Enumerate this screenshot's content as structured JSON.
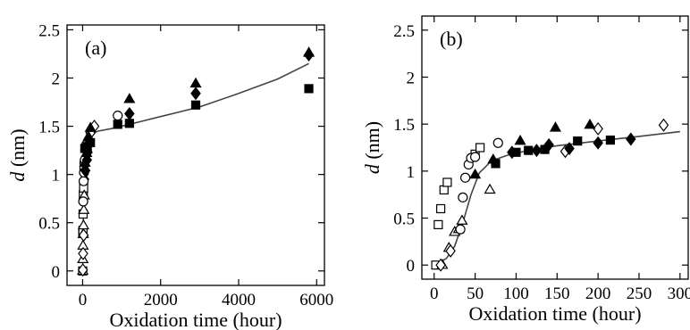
{
  "chart_data": [
    {
      "type": "scatter",
      "panel_label": "(a)",
      "xlabel": "Oxidation time (hour)",
      "ylabel_italic": "d",
      "ylabel_unit": " (nm)",
      "xlim": [
        -400,
        6200
      ],
      "ylim": [
        -0.15,
        2.55
      ],
      "xticks": [
        0,
        2000,
        4000,
        6000
      ],
      "xtick_labels": [
        "0",
        "2000",
        "4000",
        "6000"
      ],
      "yticks": [
        0,
        0.5,
        1,
        1.5,
        2,
        2.5
      ],
      "ytick_labels": [
        "0",
        "0.5",
        "1",
        "1.5",
        "2",
        "2.5"
      ],
      "grid": false,
      "series": [
        {
          "marker": "square-open",
          "points": [
            [
              2,
              0.0
            ],
            [
              5,
              0.39
            ],
            [
              8,
              0.42
            ],
            [
              12,
              0.59
            ],
            [
              18,
              0.79
            ],
            [
              25,
              0.86
            ],
            [
              35,
              1.05
            ],
            [
              55,
              1.27
            ]
          ]
        },
        {
          "marker": "triangle-open",
          "points": [
            [
              3,
              0.0
            ],
            [
              6,
              0.12
            ],
            [
              10,
              0.26
            ],
            [
              15,
              0.38
            ],
            [
              22,
              0.47
            ],
            [
              30,
              0.63
            ],
            [
              40,
              0.78
            ]
          ]
        },
        {
          "marker": "diamond-open",
          "points": [
            [
              5,
              0.01
            ],
            [
              12,
              0.18
            ],
            [
              25,
              0.37
            ],
            [
              40,
              0.95
            ],
            [
              70,
              1.17
            ],
            [
              100,
              1.25
            ],
            [
              200,
              1.43
            ],
            [
              300,
              1.5
            ]
          ]
        },
        {
          "marker": "circle-open",
          "points": [
            [
              15,
              0.72
            ],
            [
              25,
              0.93
            ],
            [
              35,
              1.02
            ],
            [
              45,
              1.12
            ],
            [
              55,
              1.15
            ],
            [
              75,
              1.27
            ],
            [
              95,
              1.31
            ],
            [
              900,
              1.61
            ]
          ]
        },
        {
          "marker": "square-filled",
          "points": [
            [
              80,
              1.27
            ],
            [
              120,
              1.29
            ],
            [
              200,
              1.33
            ],
            [
              900,
              1.52
            ],
            [
              1200,
              1.53
            ],
            [
              2900,
              1.72
            ],
            [
              5800,
              1.89
            ]
          ]
        },
        {
          "marker": "triangle-filled",
          "points": [
            [
              60,
              1.12
            ],
            [
              100,
              1.22
            ],
            [
              150,
              1.39
            ],
            [
              200,
              1.48
            ],
            [
              1200,
              1.78
            ],
            [
              2900,
              1.94
            ],
            [
              5800,
              2.26
            ]
          ]
        },
        {
          "marker": "diamond-filled",
          "points": [
            [
              70,
              1.04
            ],
            [
              110,
              1.15
            ],
            [
              130,
              1.23
            ],
            [
              160,
              1.36
            ],
            [
              1200,
              1.63
            ],
            [
              2900,
              1.84
            ],
            [
              5800,
              2.24
            ]
          ]
        }
      ],
      "fit_curve": [
        [
          0,
          0.0
        ],
        [
          20,
          0.6
        ],
        [
          40,
          0.95
        ],
        [
          60,
          1.13
        ],
        [
          80,
          1.25
        ],
        [
          100,
          1.32
        ],
        [
          150,
          1.39
        ],
        [
          200,
          1.42
        ],
        [
          400,
          1.45
        ],
        [
          800,
          1.48
        ],
        [
          1500,
          1.55
        ],
        [
          2000,
          1.6
        ],
        [
          3000,
          1.7
        ],
        [
          4000,
          1.84
        ],
        [
          5000,
          1.99
        ],
        [
          5800,
          2.15
        ]
      ]
    },
    {
      "type": "scatter",
      "panel_label": "(b)",
      "xlabel": "Oxidation time (hour)",
      "ylabel_italic": "d",
      "ylabel_unit": " (nm)",
      "xlim": [
        -15,
        310
      ],
      "ylim": [
        -0.15,
        2.65
      ],
      "xticks": [
        0,
        50,
        100,
        150,
        200,
        250,
        300
      ],
      "xtick_labels": [
        "0",
        "50",
        "100",
        "150",
        "200",
        "250",
        "300"
      ],
      "yticks": [
        0,
        0.5,
        1,
        1.5,
        2,
        2.5
      ],
      "ytick_labels": [
        "0",
        "0.5",
        "1",
        "1.5",
        "2",
        "2.5"
      ],
      "grid": false,
      "series": [
        {
          "marker": "square-open",
          "points": [
            [
              2,
              0.0
            ],
            [
              5,
              0.43
            ],
            [
              8,
              0.6
            ],
            [
              12,
              0.8
            ],
            [
              16,
              0.88
            ],
            [
              50,
              1.18
            ],
            [
              56,
              1.25
            ]
          ]
        },
        {
          "marker": "triangle-open",
          "points": [
            [
              10,
              0.0
            ],
            [
              18,
              0.18
            ],
            [
              25,
              0.35
            ],
            [
              30,
              0.38
            ],
            [
              34,
              0.47
            ],
            [
              68,
              0.8
            ]
          ]
        },
        {
          "marker": "diamond-open",
          "points": [
            [
              8,
              0.0
            ],
            [
              20,
              0.15
            ],
            [
              160,
              1.21
            ],
            [
              200,
              1.45
            ],
            [
              280,
              1.49
            ]
          ]
        },
        {
          "marker": "circle-open",
          "points": [
            [
              32,
              0.38
            ],
            [
              35,
              0.72
            ],
            [
              38,
              0.93
            ],
            [
              42,
              1.07
            ],
            [
              45,
              1.14
            ],
            [
              50,
              1.15
            ],
            [
              78,
              1.3
            ]
          ]
        },
        {
          "marker": "square-filled",
          "points": [
            [
              75,
              1.08
            ],
            [
              100,
              1.2
            ],
            [
              115,
              1.22
            ],
            [
              135,
              1.23
            ],
            [
              175,
              1.32
            ],
            [
              215,
              1.33
            ]
          ]
        },
        {
          "marker": "triangle-filled",
          "points": [
            [
              50,
              0.96
            ],
            [
              72,
              1.12
            ],
            [
              105,
              1.32
            ],
            [
              148,
              1.46
            ],
            [
              190,
              1.49
            ]
          ]
        },
        {
          "marker": "diamond-filled",
          "points": [
            [
              95,
              1.2
            ],
            [
              125,
              1.22
            ],
            [
              140,
              1.28
            ],
            [
              165,
              1.24
            ],
            [
              200,
              1.3
            ],
            [
              240,
              1.34
            ]
          ]
        }
      ],
      "fit_curve": [
        [
          0,
          0.0
        ],
        [
          15,
          0.07
        ],
        [
          25,
          0.2
        ],
        [
          35,
          0.45
        ],
        [
          45,
          0.75
        ],
        [
          55,
          0.98
        ],
        [
          70,
          1.11
        ],
        [
          90,
          1.17
        ],
        [
          120,
          1.23
        ],
        [
          150,
          1.27
        ],
        [
          200,
          1.32
        ],
        [
          250,
          1.37
        ],
        [
          300,
          1.42
        ]
      ]
    }
  ]
}
